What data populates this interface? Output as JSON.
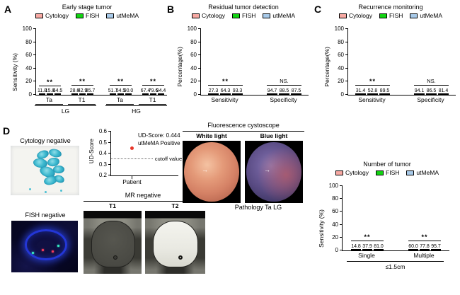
{
  "panels": {
    "a": "A",
    "b": "B",
    "c": "C",
    "d": "D"
  },
  "legend": {
    "items": [
      {
        "label": "Cytology",
        "color": "#F7A9A3"
      },
      {
        "label": "FISH",
        "color": "#12D312"
      },
      {
        "label": "utMeMA",
        "color": "#A8CAE9"
      }
    ]
  },
  "chart_data": [
    {
      "type": "bar",
      "title": "Early stage tumor",
      "ylabel": "Sensitivity (%)",
      "ylim": [
        0,
        100
      ],
      "yticks": [
        "0",
        "20",
        "40",
        "60",
        "80",
        "100"
      ],
      "series": [
        "Cytology",
        "FISH",
        "utMeMA"
      ],
      "group_underline": true,
      "groups": [
        {
          "label": "Ta",
          "values": [
            "11.8",
            "15.8",
            "64.5"
          ],
          "sig": "**"
        },
        {
          "label": "T1",
          "values": [
            "28.6",
            "42.9",
            "85.7"
          ],
          "sig": "**"
        },
        {
          "label": "Ta",
          "values": [
            "51.7",
            "54.5",
            "90.0"
          ],
          "sig": "**"
        },
        {
          "label": "T1",
          "values": [
            "67.4",
            "79.6",
            "94.4"
          ],
          "sig": "**"
        }
      ],
      "supergroups": [
        {
          "label": "LG",
          "from": 0,
          "to": 1
        },
        {
          "label": "HG",
          "from": 2,
          "to": 3
        }
      ]
    },
    {
      "type": "bar",
      "title": "Residual tumor detection",
      "ylabel": "Percentage(%)",
      "ylim": [
        0,
        100
      ],
      "yticks": [
        "0",
        "20",
        "40",
        "60",
        "80",
        "100"
      ],
      "series": [
        "Cytology",
        "FISH",
        "utMeMA"
      ],
      "groups": [
        {
          "label": "Sensitivity",
          "values": [
            "27.3",
            "64.3",
            "93.3"
          ],
          "sig": "**"
        },
        {
          "label": "Specificity",
          "values": [
            "94.7",
            "88.5",
            "87.5"
          ],
          "sig": "NS."
        }
      ]
    },
    {
      "type": "bar",
      "title": "Recurrence monitoring",
      "ylabel": "Percentage(%)",
      "ylim": [
        0,
        100
      ],
      "yticks": [
        "0",
        "20",
        "40",
        "60",
        "80",
        "100"
      ],
      "series": [
        "Cytology",
        "FISH",
        "utMeMA"
      ],
      "groups": [
        {
          "label": "Sensitivity",
          "values": [
            "31.4",
            "52.8",
            "89.5"
          ],
          "sig": "**"
        },
        {
          "label": "Specificity",
          "values": [
            "94.1",
            "86.5",
            "81.4"
          ],
          "sig": "NS."
        }
      ]
    },
    {
      "type": "bar",
      "title": "Number of tumor",
      "ylabel": "Sensitivity (%)",
      "ylim": [
        0,
        100
      ],
      "yticks": [
        "0",
        "20",
        "40",
        "60",
        "80",
        "100"
      ],
      "series": [
        "Cytology",
        "FISH",
        "utMeMA"
      ],
      "groups": [
        {
          "label": "Single",
          "values": [
            "14.8",
            "37.9",
            "81.0"
          ],
          "sig": "**"
        },
        {
          "label": "Multiple",
          "values": [
            "60.0",
            "77.8",
            "95.7"
          ],
          "sig": "**"
        }
      ],
      "supergroups": [
        {
          "label": "≤1.5cm",
          "from": 0,
          "to": 1
        }
      ]
    },
    {
      "type": "scatter",
      "ylabel": "UD-Score",
      "ylim": [
        0.2,
        0.6
      ],
      "yticks": [
        "0.2",
        "0.3",
        "0.4",
        "0.5",
        "0.6"
      ],
      "x_tick": "Patient",
      "point": {
        "y": 0.444,
        "color": "#E8362A"
      },
      "cutoff": {
        "y": 0.35,
        "label": "cutoff value"
      },
      "annotations": [
        "UD-Score: 0.444",
        "utMeMA Positive"
      ]
    }
  ],
  "panel_d": {
    "cytology_title": "Cytology negative",
    "fish_title": "FISH negative",
    "mr_title": "MR negative",
    "mr_t1": "T1",
    "mr_t2": "T2",
    "cystoscope_title": "Fluorescence cystoscope",
    "white_light": "White light",
    "blue_light": "Blue light",
    "pathology_title": "Pathology Ta LG",
    "arrow_marker": "→"
  }
}
